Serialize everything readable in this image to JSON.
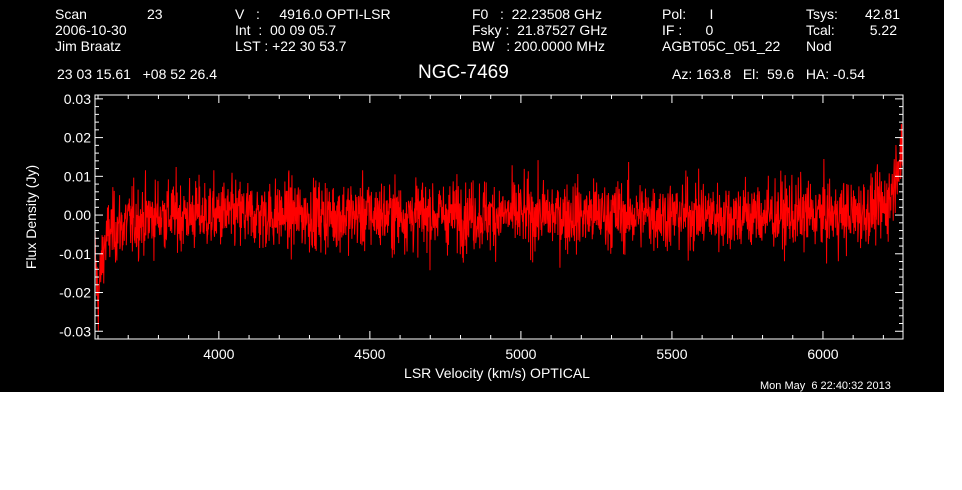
{
  "header": {
    "col1": [
      "Scan",
      "2006-10-30",
      "Jim Braatz"
    ],
    "scan_number": "23",
    "col2": [
      "V   :     4916.0 OPTI-LSR",
      "Int  :  00 09 05.7",
      "LST : +22 30 53.7"
    ],
    "col3": [
      "F0   :  22.23508 GHz",
      "Fsky :  21.87527 GHz",
      "BW   : 200.0000 MHz"
    ],
    "col4": [
      "Pol:      I",
      "IF :      0",
      "AGBT05C_051_22"
    ],
    "col5_labels": [
      "Tsys:",
      "Tcal:",
      "Nod"
    ],
    "col5_values": [
      "42.81",
      "5.22",
      ""
    ],
    "coords": "23 03 15.61   +08 52 26.4",
    "source": "NGC-7469",
    "azelha": "Az: 163.8   El:  59.6   HA: -0.54",
    "timestamp": "Mon May  6 22:40:32 2013"
  },
  "colors": {
    "background": "#000000",
    "axes": "#ffffff",
    "trace": "#ff0000"
  },
  "chart_data": {
    "type": "line",
    "title": "NGC-7469",
    "xlabel": "LSR Velocity (km/s) OPTICAL",
    "ylabel": "Flux Density (Jy)",
    "xlim": [
      3590,
      6265
    ],
    "ylim": [
      -0.032,
      0.031
    ],
    "xticks": [
      4000,
      4500,
      5000,
      5500,
      6000
    ],
    "xtick_labels": [
      "4000",
      "4500",
      "5000",
      "5500",
      "6000"
    ],
    "yticks": [
      -0.03,
      -0.02,
      -0.01,
      0.0,
      0.01,
      0.02,
      0.03
    ],
    "ytick_labels": [
      "-0.03",
      "-0.02",
      "-0.01",
      "0.00",
      "0.01",
      "0.02",
      "0.03"
    ],
    "grid": false,
    "series": [
      {
        "color": "#ff0000",
        "x": [
          3590,
          3600,
          3610,
          3620,
          3640,
          3700,
          3800,
          3900,
          4000,
          4100,
          4200,
          4300,
          4400,
          4500,
          4600,
          4700,
          4800,
          4900,
          5000,
          5100,
          5200,
          5300,
          5400,
          5500,
          5600,
          5700,
          5800,
          5900,
          6000,
          6100,
          6150,
          6200,
          6220,
          6240,
          6250,
          6265
        ],
        "y": [
          -0.01,
          -0.022,
          -0.014,
          -0.008,
          -0.004,
          -0.002,
          0.0,
          0.0,
          0.0,
          0.0,
          0.0,
          0.0,
          0.0,
          0.0,
          0.0,
          0.0,
          0.0,
          0.0,
          0.0,
          0.0,
          0.0,
          0.0,
          0.0,
          0.0,
          0.0,
          0.0,
          0.0,
          0.0,
          0.0,
          0.0,
          0.001,
          0.002,
          0.004,
          0.01,
          0.016,
          0.012
        ],
        "noise_rms_jy": 0.0045
      }
    ]
  }
}
